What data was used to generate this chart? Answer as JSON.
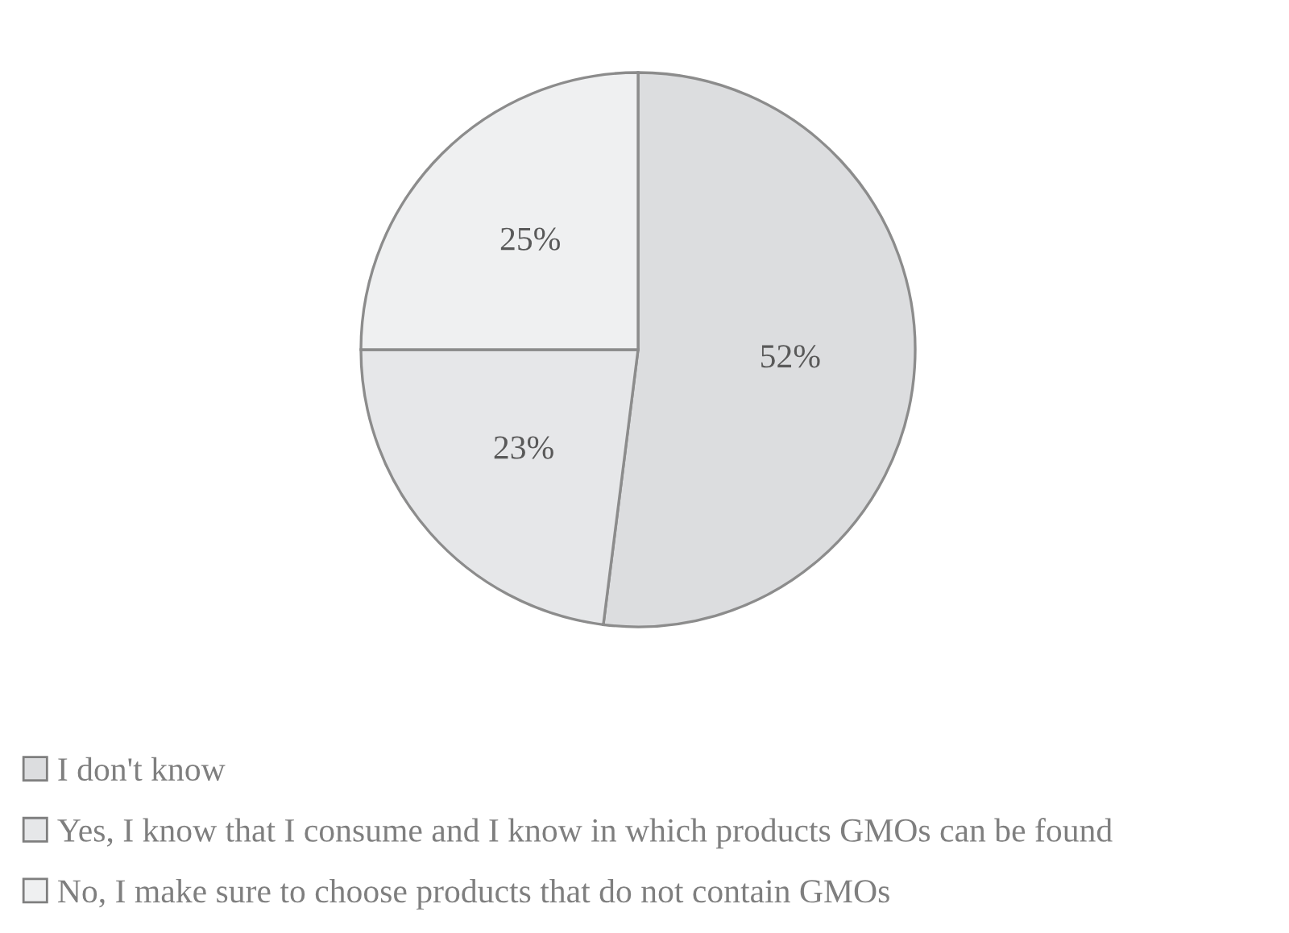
{
  "chart_data": {
    "type": "pie",
    "categories": [
      "I don't know",
      "Yes, I know that I consume and I know in which products GMOs can be found",
      "No, I make sure to choose products that do not contain GMOs"
    ],
    "values": [
      52,
      23,
      25
    ],
    "value_labels": [
      "52%",
      "23%",
      "25%"
    ],
    "colors": [
      "#dcdddf",
      "#e6e7e9",
      "#eff0f1"
    ],
    "legend": "bottom left"
  }
}
